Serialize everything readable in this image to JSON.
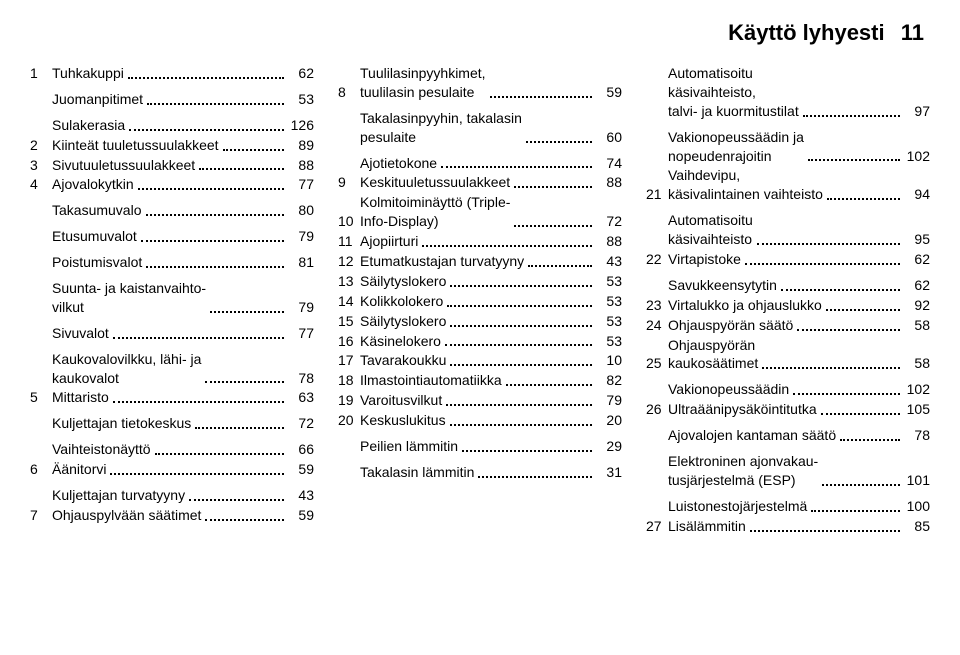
{
  "header": {
    "title": "Käyttö lyhyesti",
    "page": "11"
  },
  "layout": {
    "font_family": "Arial",
    "body_fontsize_pt": 11,
    "header_fontsize_pt": 17,
    "text_color": "#000000",
    "background_color": "#ffffff",
    "columns": 3
  },
  "col1": [
    {
      "num": "1",
      "label": "Tuhkakuppi",
      "page": "62",
      "gap_after": true
    },
    {
      "num": "",
      "label": "Juomanpitimet",
      "page": "53",
      "gap_after": true
    },
    {
      "num": "",
      "label": "Sulakerasia",
      "page": "126"
    },
    {
      "num": "2",
      "label": "Kiinteät tuuletussuulakkeet",
      "page": "89"
    },
    {
      "num": "3",
      "label": "Sivutuuletussuulakkeet",
      "page": "88"
    },
    {
      "num": "4",
      "label": "Ajovalokytkin",
      "page": "77",
      "gap_after": true
    },
    {
      "num": "",
      "label": "Takasumuvalo",
      "page": "80",
      "gap_after": true
    },
    {
      "num": "",
      "label": "Etusumuvalot",
      "page": "79",
      "gap_after": true
    },
    {
      "num": "",
      "label": "Poistumisvalot",
      "page": "81",
      "gap_after": true
    },
    {
      "num": "",
      "label": "Suunta- ja kaistanvaihto-\nvilkut",
      "page": "79",
      "gap_after": true
    },
    {
      "num": "",
      "label": "Sivuvalot",
      "page": "77",
      "gap_after": true
    },
    {
      "num": "",
      "label": "Kaukovalovilkku, lähi- ja\nkaukovalot",
      "page": "78"
    },
    {
      "num": "5",
      "label": "Mittaristo",
      "page": "63",
      "gap_after": true
    },
    {
      "num": "",
      "label": "Kuljettajan tietokeskus",
      "page": "72",
      "gap_after": true
    },
    {
      "num": "",
      "label": "Vaihteistonäyttö",
      "page": "66"
    },
    {
      "num": "6",
      "label": "Äänitorvi",
      "page": "59",
      "gap_after": true
    },
    {
      "num": "",
      "label": "Kuljettajan turvatyyny",
      "page": "43"
    },
    {
      "num": "7",
      "label": "Ohjauspylvään säätimet",
      "page": "59"
    }
  ],
  "col2": [
    {
      "num": "8",
      "label": "Tuulilasinpyyhkimet,\ntuulilasin pesulaite",
      "page": "59",
      "gap_after": true
    },
    {
      "num": "",
      "label": "Takalasinpyyhin, takalasin\npesulaite",
      "page": "60",
      "gap_after": true
    },
    {
      "num": "",
      "label": "Ajotietokone",
      "page": "74"
    },
    {
      "num": "9",
      "label": "Keskituuletussuulakkeet",
      "page": "88"
    },
    {
      "num": "10",
      "label": "Kolmitoiminäyttö (Triple-\nInfo-Display)",
      "page": "72"
    },
    {
      "num": "11",
      "label": "Ajopiirturi",
      "page": "88"
    },
    {
      "num": "12",
      "label": "Etumatkustajan turvatyyny",
      "page": "43"
    },
    {
      "num": "13",
      "label": "Säilytyslokero",
      "page": "53"
    },
    {
      "num": "14",
      "label": "Kolikkolokero",
      "page": "53"
    },
    {
      "num": "15",
      "label": "Säilytyslokero",
      "page": "53"
    },
    {
      "num": "16",
      "label": "Käsinelokero",
      "page": "53"
    },
    {
      "num": "17",
      "label": "Tavarakoukku",
      "page": "10"
    },
    {
      "num": "18",
      "label": "Ilmastointiautomatiikka",
      "page": "82"
    },
    {
      "num": "19",
      "label": "Varoitusvilkut",
      "page": "79"
    },
    {
      "num": "20",
      "label": "Keskuslukitus",
      "page": "20",
      "gap_after": true
    },
    {
      "num": "",
      "label": "Peilien lämmitin",
      "page": "29",
      "gap_after": true
    },
    {
      "num": "",
      "label": "Takalasin lämmitin",
      "page": "31"
    }
  ],
  "col3": [
    {
      "num": "",
      "label": "Automatisoitu\nkäsivaihteisto,\ntalvi- ja kuormitustilat",
      "page": "97",
      "gap_after": true
    },
    {
      "num": "",
      "label": "Vakionopeussäädin ja\nnopeudenrajoitin",
      "page": "102"
    },
    {
      "num": "21",
      "label": "Vaihdevipu,\nkäsivalintainen vaihteisto",
      "page": "94",
      "gap_after": true
    },
    {
      "num": "",
      "label": "Automatisoitu\nkäsivaihteisto",
      "page": "95"
    },
    {
      "num": "22",
      "label": "Virtapistoke",
      "page": "62",
      "gap_after": true
    },
    {
      "num": "",
      "label": "Savukkeensytytin",
      "page": "62"
    },
    {
      "num": "23",
      "label": "Virtalukko ja ohjauslukko",
      "page": "92"
    },
    {
      "num": "24",
      "label": "Ohjauspyörän säätö",
      "page": "58"
    },
    {
      "num": "25",
      "label": "Ohjauspyörän\nkaukosäätimet",
      "page": "58",
      "gap_after": true
    },
    {
      "num": "",
      "label": "Vakionopeussäädin",
      "page": "102"
    },
    {
      "num": "26",
      "label": "Ultraäänipysäköintitutka",
      "page": "105",
      "gap_after": true
    },
    {
      "num": "",
      "label": "Ajovalojen kantaman säätö",
      "page": "78",
      "gap_after": true
    },
    {
      "num": "",
      "label": "Elektroninen ajonvakau-\ntusjärjestelmä (ESP)",
      "page": "101",
      "gap_after": true
    },
    {
      "num": "",
      "label": "Luistonestojärjestelmä",
      "page": "100"
    },
    {
      "num": "27",
      "label": "Lisälämmitin",
      "page": "85"
    }
  ]
}
